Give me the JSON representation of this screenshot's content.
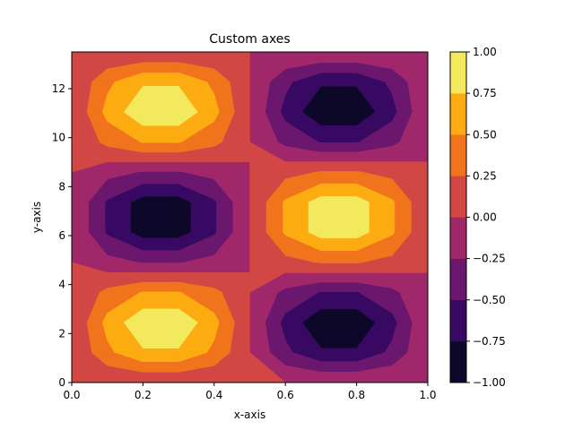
{
  "chart_data": {
    "type": "contour",
    "title": "Custom axes",
    "xlabel": "x-axis",
    "ylabel": "y-axis",
    "xlim": [
      0,
      1
    ],
    "ylim": [
      0,
      13.5
    ],
    "xticks": [
      "0.0",
      "0.2",
      "0.4",
      "0.6",
      "0.8",
      "1.0"
    ],
    "yticks": [
      "0",
      "2",
      "4",
      "6",
      "8",
      "10",
      "12"
    ],
    "colorbar": {
      "levels": [
        -1.0,
        -0.75,
        -0.5,
        -0.25,
        0.0,
        0.25,
        0.5,
        0.75,
        1.0
      ],
      "tick_labels": [
        "−1.00",
        "−0.75",
        "−0.50",
        "−0.25",
        "0.00",
        "0.25",
        "0.50",
        "0.75",
        "1.00"
      ],
      "colors": [
        "#0d0829",
        "#380962",
        "#6b176e",
        "#a0286a",
        "#d24644",
        "#f1731c",
        "#fcab10",
        "#f2e95d"
      ]
    },
    "field": "z = sin(2*pi*x) * sin(y*pi/4.5), sampled on a coarse grid (11 x 12) and filled with 8 discrete levels",
    "grid": false
  }
}
